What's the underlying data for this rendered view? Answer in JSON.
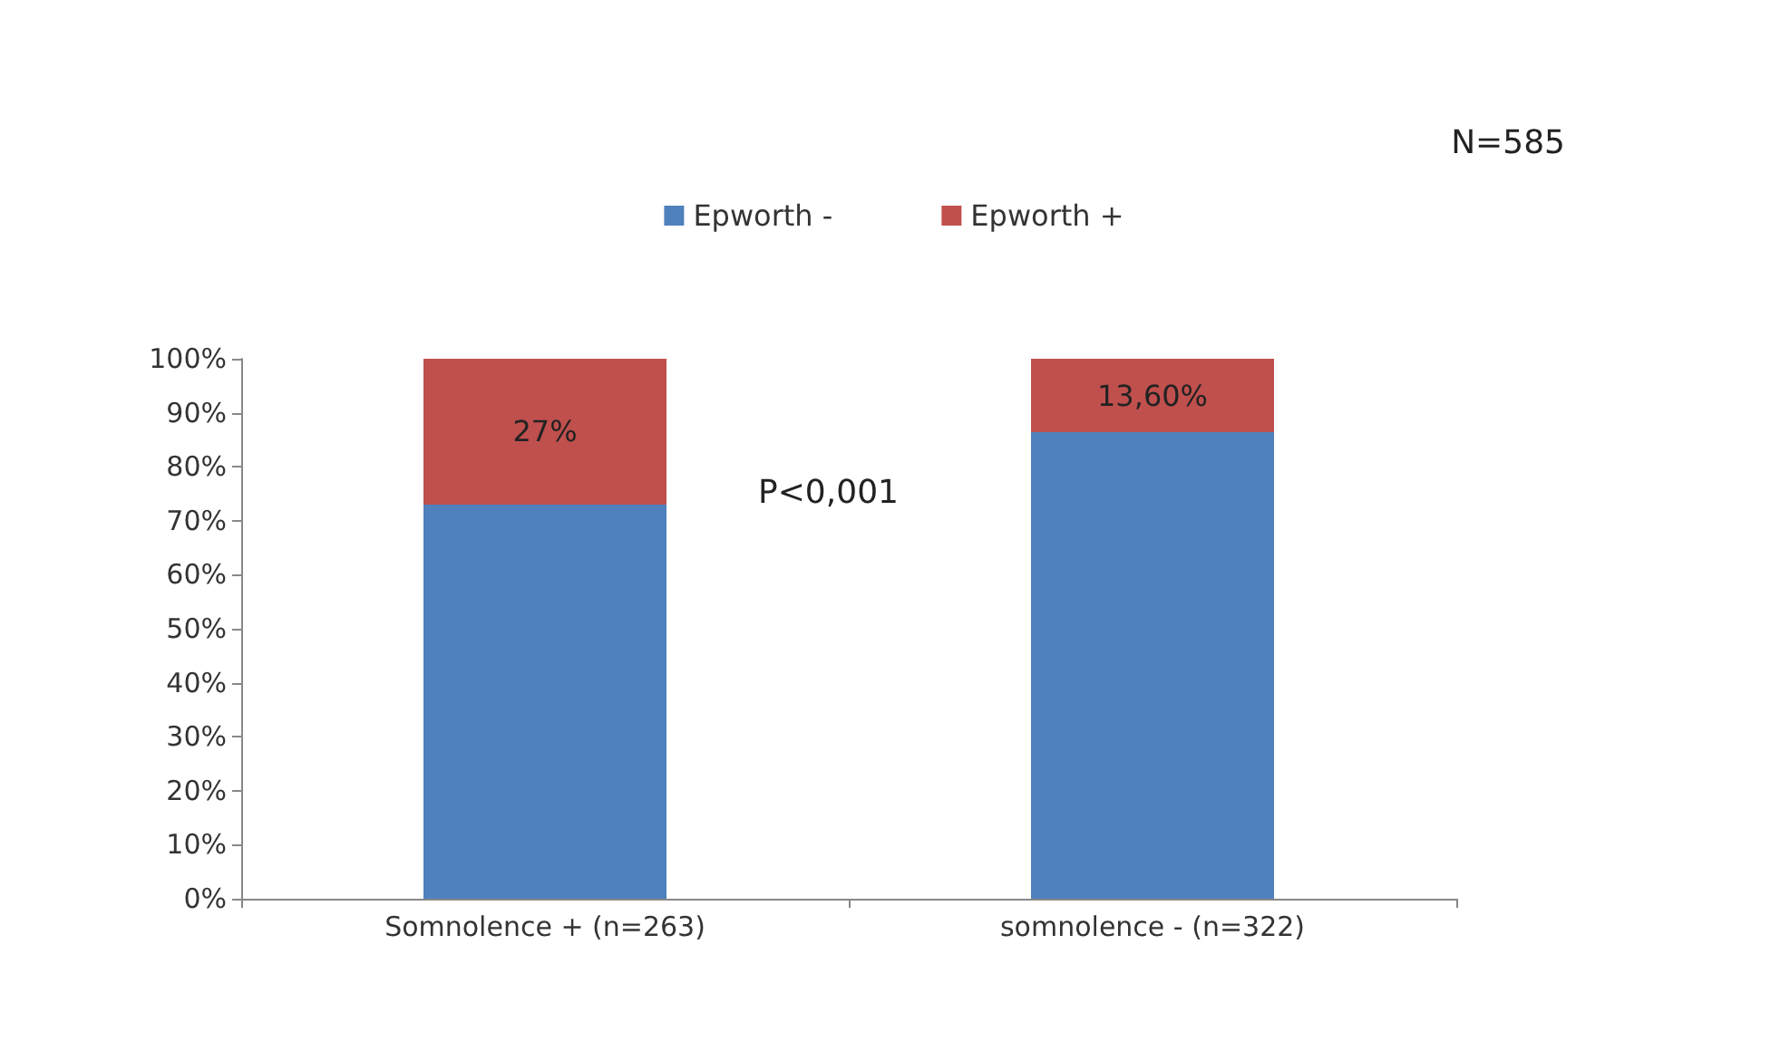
{
  "chart_data": {
    "type": "bar",
    "stacked": true,
    "categories": [
      "Somnolence + (n=263)",
      "somnolence - (n=322)"
    ],
    "series": [
      {
        "name": "Epworth -",
        "color": "#4f81bd",
        "values": [
          73,
          86.4
        ]
      },
      {
        "name": "Epworth +",
        "color": "#c0504d",
        "values": [
          27,
          13.6
        ],
        "value_labels": [
          "27%",
          "13,60%"
        ]
      }
    ],
    "ylim": [
      0,
      100
    ],
    "yticks": [
      {
        "value": 0,
        "label": "0%"
      },
      {
        "value": 10,
        "label": "10%"
      },
      {
        "value": 20,
        "label": "20%"
      },
      {
        "value": 30,
        "label": "30%"
      },
      {
        "value": 40,
        "label": "40%"
      },
      {
        "value": 50,
        "label": "50%"
      },
      {
        "value": 60,
        "label": "60%"
      },
      {
        "value": 70,
        "label": "70%"
      },
      {
        "value": 80,
        "label": "80%"
      },
      {
        "value": 90,
        "label": "90%"
      },
      {
        "value": 100,
        "label": "100%"
      }
    ],
    "grid": false,
    "legend": "top",
    "annotations": [
      "N=585",
      "P<0,001"
    ]
  }
}
